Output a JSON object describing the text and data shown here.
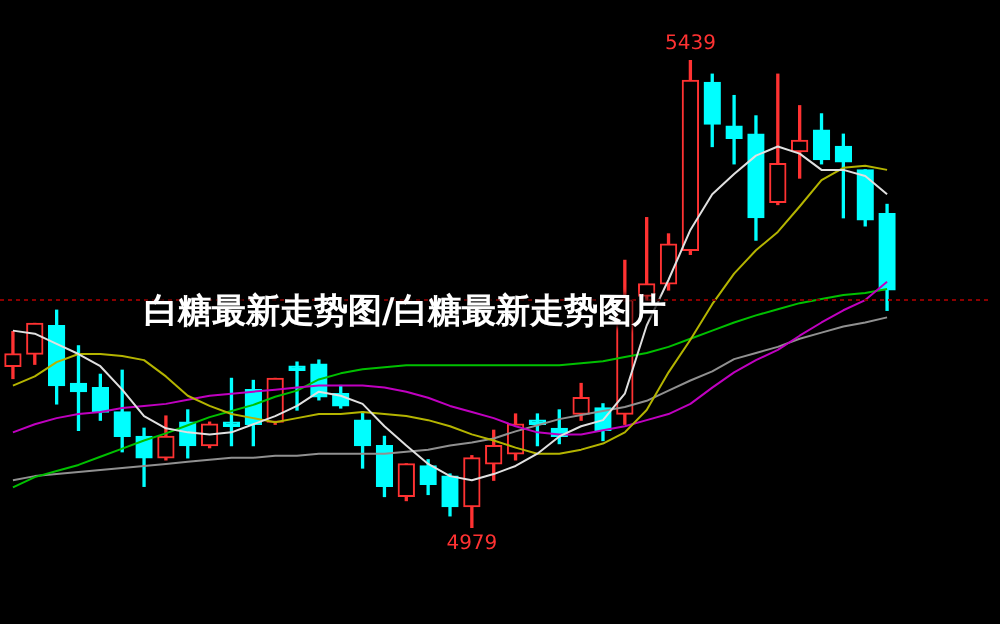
{
  "chart_data": {
    "type": "candlestick",
    "title": "白糖最新走势图/白糖最新走势图片",
    "categories": [
      null,
      null,
      null,
      null,
      null,
      null,
      null,
      null,
      null,
      null,
      null,
      null,
      null,
      null,
      null,
      null,
      null,
      null,
      null,
      null,
      null,
      null,
      null,
      null,
      null,
      null,
      null,
      null,
      null,
      null,
      null,
      null,
      null,
      null,
      null,
      null,
      null,
      null,
      null,
      null,
      null
    ],
    "ohlc": [
      [
        5138,
        5172,
        5126,
        5150
      ],
      [
        5150,
        5180,
        5140,
        5180
      ],
      [
        5178,
        5193,
        5101,
        5119
      ],
      [
        5121,
        5158,
        5075,
        5113
      ],
      [
        5117,
        5130,
        5085,
        5093
      ],
      [
        5093,
        5134,
        5054,
        5069
      ],
      [
        5069,
        5077,
        5020,
        5048
      ],
      [
        5048,
        5089,
        5046,
        5069
      ],
      [
        5083,
        5095,
        5048,
        5060
      ],
      [
        5060,
        5083,
        5058,
        5081
      ],
      [
        5083,
        5126,
        5060,
        5079
      ],
      [
        5115,
        5124,
        5060,
        5081
      ],
      [
        5083,
        5126,
        5081,
        5126
      ],
      [
        5138,
        5142,
        5095,
        5134
      ],
      [
        5140,
        5144,
        5105,
        5108
      ],
      [
        5111,
        5119,
        5097,
        5099
      ],
      [
        5085,
        5093,
        5038,
        5060
      ],
      [
        5060,
        5069,
        5010,
        5020
      ],
      [
        5010,
        5042,
        5006,
        5042
      ],
      [
        5040,
        5046,
        5012,
        5022
      ],
      [
        5030,
        5032,
        4991,
        5000
      ],
      [
        5000,
        5050,
        4979,
        5048
      ],
      [
        5042,
        5075,
        5026,
        5060
      ],
      [
        5052,
        5091,
        5046,
        5081
      ],
      [
        5085,
        5091,
        5060,
        5081
      ],
      [
        5077,
        5095,
        5062,
        5069
      ],
      [
        5091,
        5121,
        5085,
        5107
      ],
      [
        5097,
        5101,
        5065,
        5075
      ],
      [
        5091,
        5242,
        5081,
        5203
      ],
      [
        5207,
        5284,
        5203,
        5219
      ],
      [
        5219,
        5268,
        5213,
        5258
      ],
      [
        5252,
        5439,
        5248,
        5419
      ],
      [
        5417,
        5425,
        5354,
        5376
      ],
      [
        5374,
        5404,
        5337,
        5362
      ],
      [
        5366,
        5384,
        5262,
        5284
      ],
      [
        5299,
        5425,
        5297,
        5337
      ],
      [
        5349,
        5394,
        5323,
        5360
      ],
      [
        5370,
        5386,
        5337,
        5341
      ],
      [
        5354,
        5366,
        5284,
        5339
      ],
      [
        5331,
        5331,
        5276,
        5282
      ],
      [
        5288,
        5297,
        5193,
        5213
      ]
    ],
    "colors": [
      "#ff3232",
      "#ff3232",
      "#00ffff",
      "#00ffff",
      "#00ffff",
      "#00ffff",
      "#00ffff",
      "#ff3232",
      "#00ffff",
      "#ff3232",
      "#00ffff",
      "#00ffff",
      "#ff3232",
      "#00ffff",
      "#00ffff",
      "#00ffff",
      "#00ffff",
      "#00ffff",
      "#ff3232",
      "#00ffff",
      "#00ffff",
      "#ff3232",
      "#ff3232",
      "#ff3232",
      "#00ffff",
      "#00ffff",
      "#ff3232",
      "#00ffff",
      "#ff3232",
      "#ff3232",
      "#ff3232",
      "#ff3232",
      "#00ffff",
      "#00ffff",
      "#00ffff",
      "#ff3232",
      "#ff3232",
      "#00ffff",
      "#00ffff",
      "#00ffff",
      "#00ffff"
    ],
    "series": [
      {
        "type": "line",
        "color": "#e0e0e0",
        "values": [
          5173,
          5170,
          5160,
          5150,
          5138,
          5115,
          5089,
          5077,
          5073,
          5071,
          5073,
          5081,
          5089,
          5099,
          5113,
          5109,
          5101,
          5079,
          5060,
          5042,
          5030,
          5026,
          5032,
          5040,
          5052,
          5069,
          5079,
          5085,
          5111,
          5178,
          5223,
          5272,
          5307,
          5327,
          5345,
          5354,
          5347,
          5331,
          5331,
          5325,
          5307
        ]
      },
      {
        "type": "line",
        "color": "#b4b400",
        "values": [
          5119,
          5128,
          5142,
          5150,
          5150,
          5148,
          5144,
          5128,
          5109,
          5099,
          5091,
          5087,
          5083,
          5087,
          5091,
          5091,
          5093,
          5091,
          5089,
          5085,
          5079,
          5071,
          5065,
          5058,
          5052,
          5052,
          5056,
          5062,
          5073,
          5095,
          5132,
          5164,
          5199,
          5229,
          5252,
          5270,
          5295,
          5321,
          5333,
          5335,
          5331
        ]
      },
      {
        "type": "line",
        "color": "#c000c0",
        "values": [
          5073,
          5081,
          5087,
          5091,
          5093,
          5097,
          5099,
          5101,
          5105,
          5109,
          5111,
          5113,
          5115,
          5117,
          5119,
          5119,
          5119,
          5117,
          5113,
          5107,
          5099,
          5093,
          5087,
          5079,
          5073,
          5071,
          5071,
          5075,
          5079,
          5085,
          5091,
          5101,
          5117,
          5132,
          5144,
          5154,
          5168,
          5181,
          5193,
          5203,
          5221
        ]
      },
      {
        "type": "line",
        "color": "#00c000",
        "values": [
          5019,
          5029,
          5035,
          5041,
          5049,
          5057,
          5065,
          5072,
          5080,
          5088,
          5094,
          5100,
          5108,
          5114,
          5125,
          5131,
          5135,
          5137,
          5139,
          5139,
          5139,
          5139,
          5139,
          5139,
          5139,
          5139,
          5141,
          5143,
          5147,
          5151,
          5157,
          5165,
          5173,
          5181,
          5188,
          5194,
          5200,
          5204,
          5208,
          5210,
          5214
        ]
      },
      {
        "type": "line",
        "color": "#909090",
        "values": [
          5026,
          5030,
          5032,
          5034,
          5036,
          5038,
          5040,
          5042,
          5044,
          5046,
          5048,
          5048,
          5050,
          5050,
          5052,
          5052,
          5052,
          5052,
          5054,
          5056,
          5060,
          5063,
          5067,
          5074,
          5080,
          5086,
          5090,
          5094,
          5098,
          5104,
          5114,
          5124,
          5133,
          5145,
          5151,
          5157,
          5165,
          5171,
          5177,
          5181,
          5186
        ]
      }
    ],
    "annotations": [
      {
        "text": "5439",
        "y": 5439
      },
      {
        "text": "4979",
        "y": 4979
      }
    ],
    "ref_lines": [
      {
        "axis": "y",
        "value": 5203,
        "color": "#8b0000",
        "line_style": "dotted"
      }
    ]
  }
}
